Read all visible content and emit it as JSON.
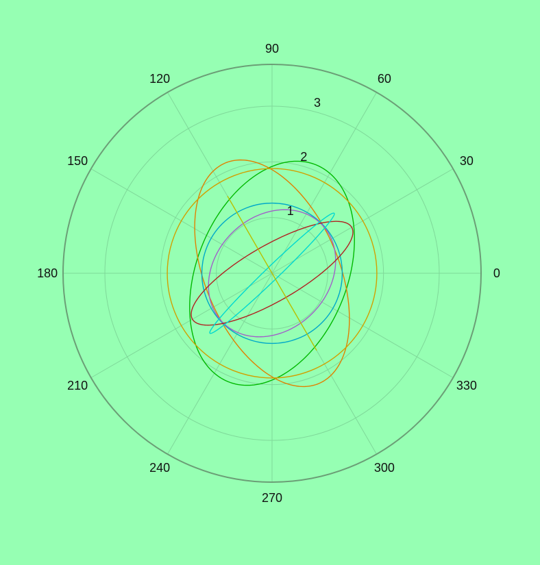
{
  "colors": {
    "background": "#96ffb3",
    "grid": "#7fd899",
    "frame": "#6b9e76"
  },
  "chart_data": {
    "type": "polar-line",
    "title": "",
    "theta_unit": "degrees",
    "theta_ticks": [
      "0",
      "30",
      "60",
      "90",
      "120",
      "150",
      "180",
      "210",
      "240",
      "270",
      "300",
      "330"
    ],
    "r_ticks": [
      "1",
      "2",
      "3"
    ],
    "r_tick_values": [
      1,
      2,
      3
    ],
    "r_tick_angle_deg": 76,
    "rlim": [
      0,
      3.75
    ],
    "grid": true,
    "series": [
      {
        "color": "#00b800",
        "shape": "ellipse",
        "semi_major": 2.1,
        "semi_minor": 1.35,
        "orientation_deg": 68
      },
      {
        "color": "#e08000",
        "shape": "ellipse",
        "semi_major": 2.15,
        "semi_minor": 1.2,
        "orientation_deg": 113
      },
      {
        "color": "#d0a000",
        "shape": "circle",
        "radius": 1.88
      },
      {
        "color": "#00a8c8",
        "shape": "circle",
        "radius": 1.26
      },
      {
        "color": "#a060c8",
        "shape": "ellipse",
        "semi_major": 1.25,
        "semi_minor": 1.02,
        "orientation_deg": 45
      },
      {
        "color": "#b02020",
        "shape": "ellipse",
        "semi_major": 1.65,
        "semi_minor": 0.5,
        "orientation_deg": 30
      },
      {
        "color": "#00d8d0",
        "shape": "ellipse",
        "semi_major": 1.55,
        "semi_minor": 0.12,
        "orientation_deg": 44
      },
      {
        "color": "#b8c000",
        "shape": "segment",
        "semi_major": 1.6,
        "semi_minor": 0.0,
        "orientation_deg": 120
      }
    ]
  }
}
